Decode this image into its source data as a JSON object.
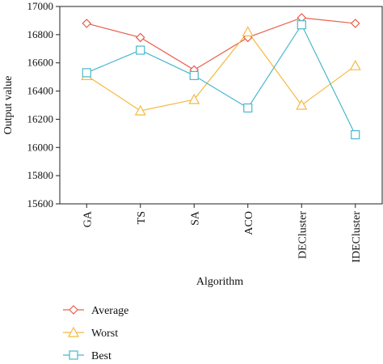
{
  "chart_data": {
    "type": "line",
    "x_label": "Algorithm",
    "y_label": "Output value",
    "categories": [
      "GA",
      "TS",
      "SA",
      "ACO",
      "DECluster",
      "IDECluster"
    ],
    "series": [
      {
        "name": "Average",
        "color": "#e8604c",
        "marker": "diamond",
        "values": [
          16880,
          16780,
          16550,
          16780,
          16920,
          16880
        ]
      },
      {
        "name": "Worst",
        "color": "#f5b942",
        "marker": "triangle",
        "values": [
          16510,
          16260,
          16340,
          16820,
          16300,
          16580
        ]
      },
      {
        "name": "Best",
        "color": "#4ab8cc",
        "marker": "square",
        "values": [
          16530,
          16690,
          16510,
          16280,
          16870,
          16090
        ]
      }
    ],
    "ylim": [
      15600,
      17000
    ],
    "yticks": [
      15600,
      15800,
      16000,
      16200,
      16400,
      16600,
      16800,
      17000
    ],
    "legend": "bottom"
  }
}
